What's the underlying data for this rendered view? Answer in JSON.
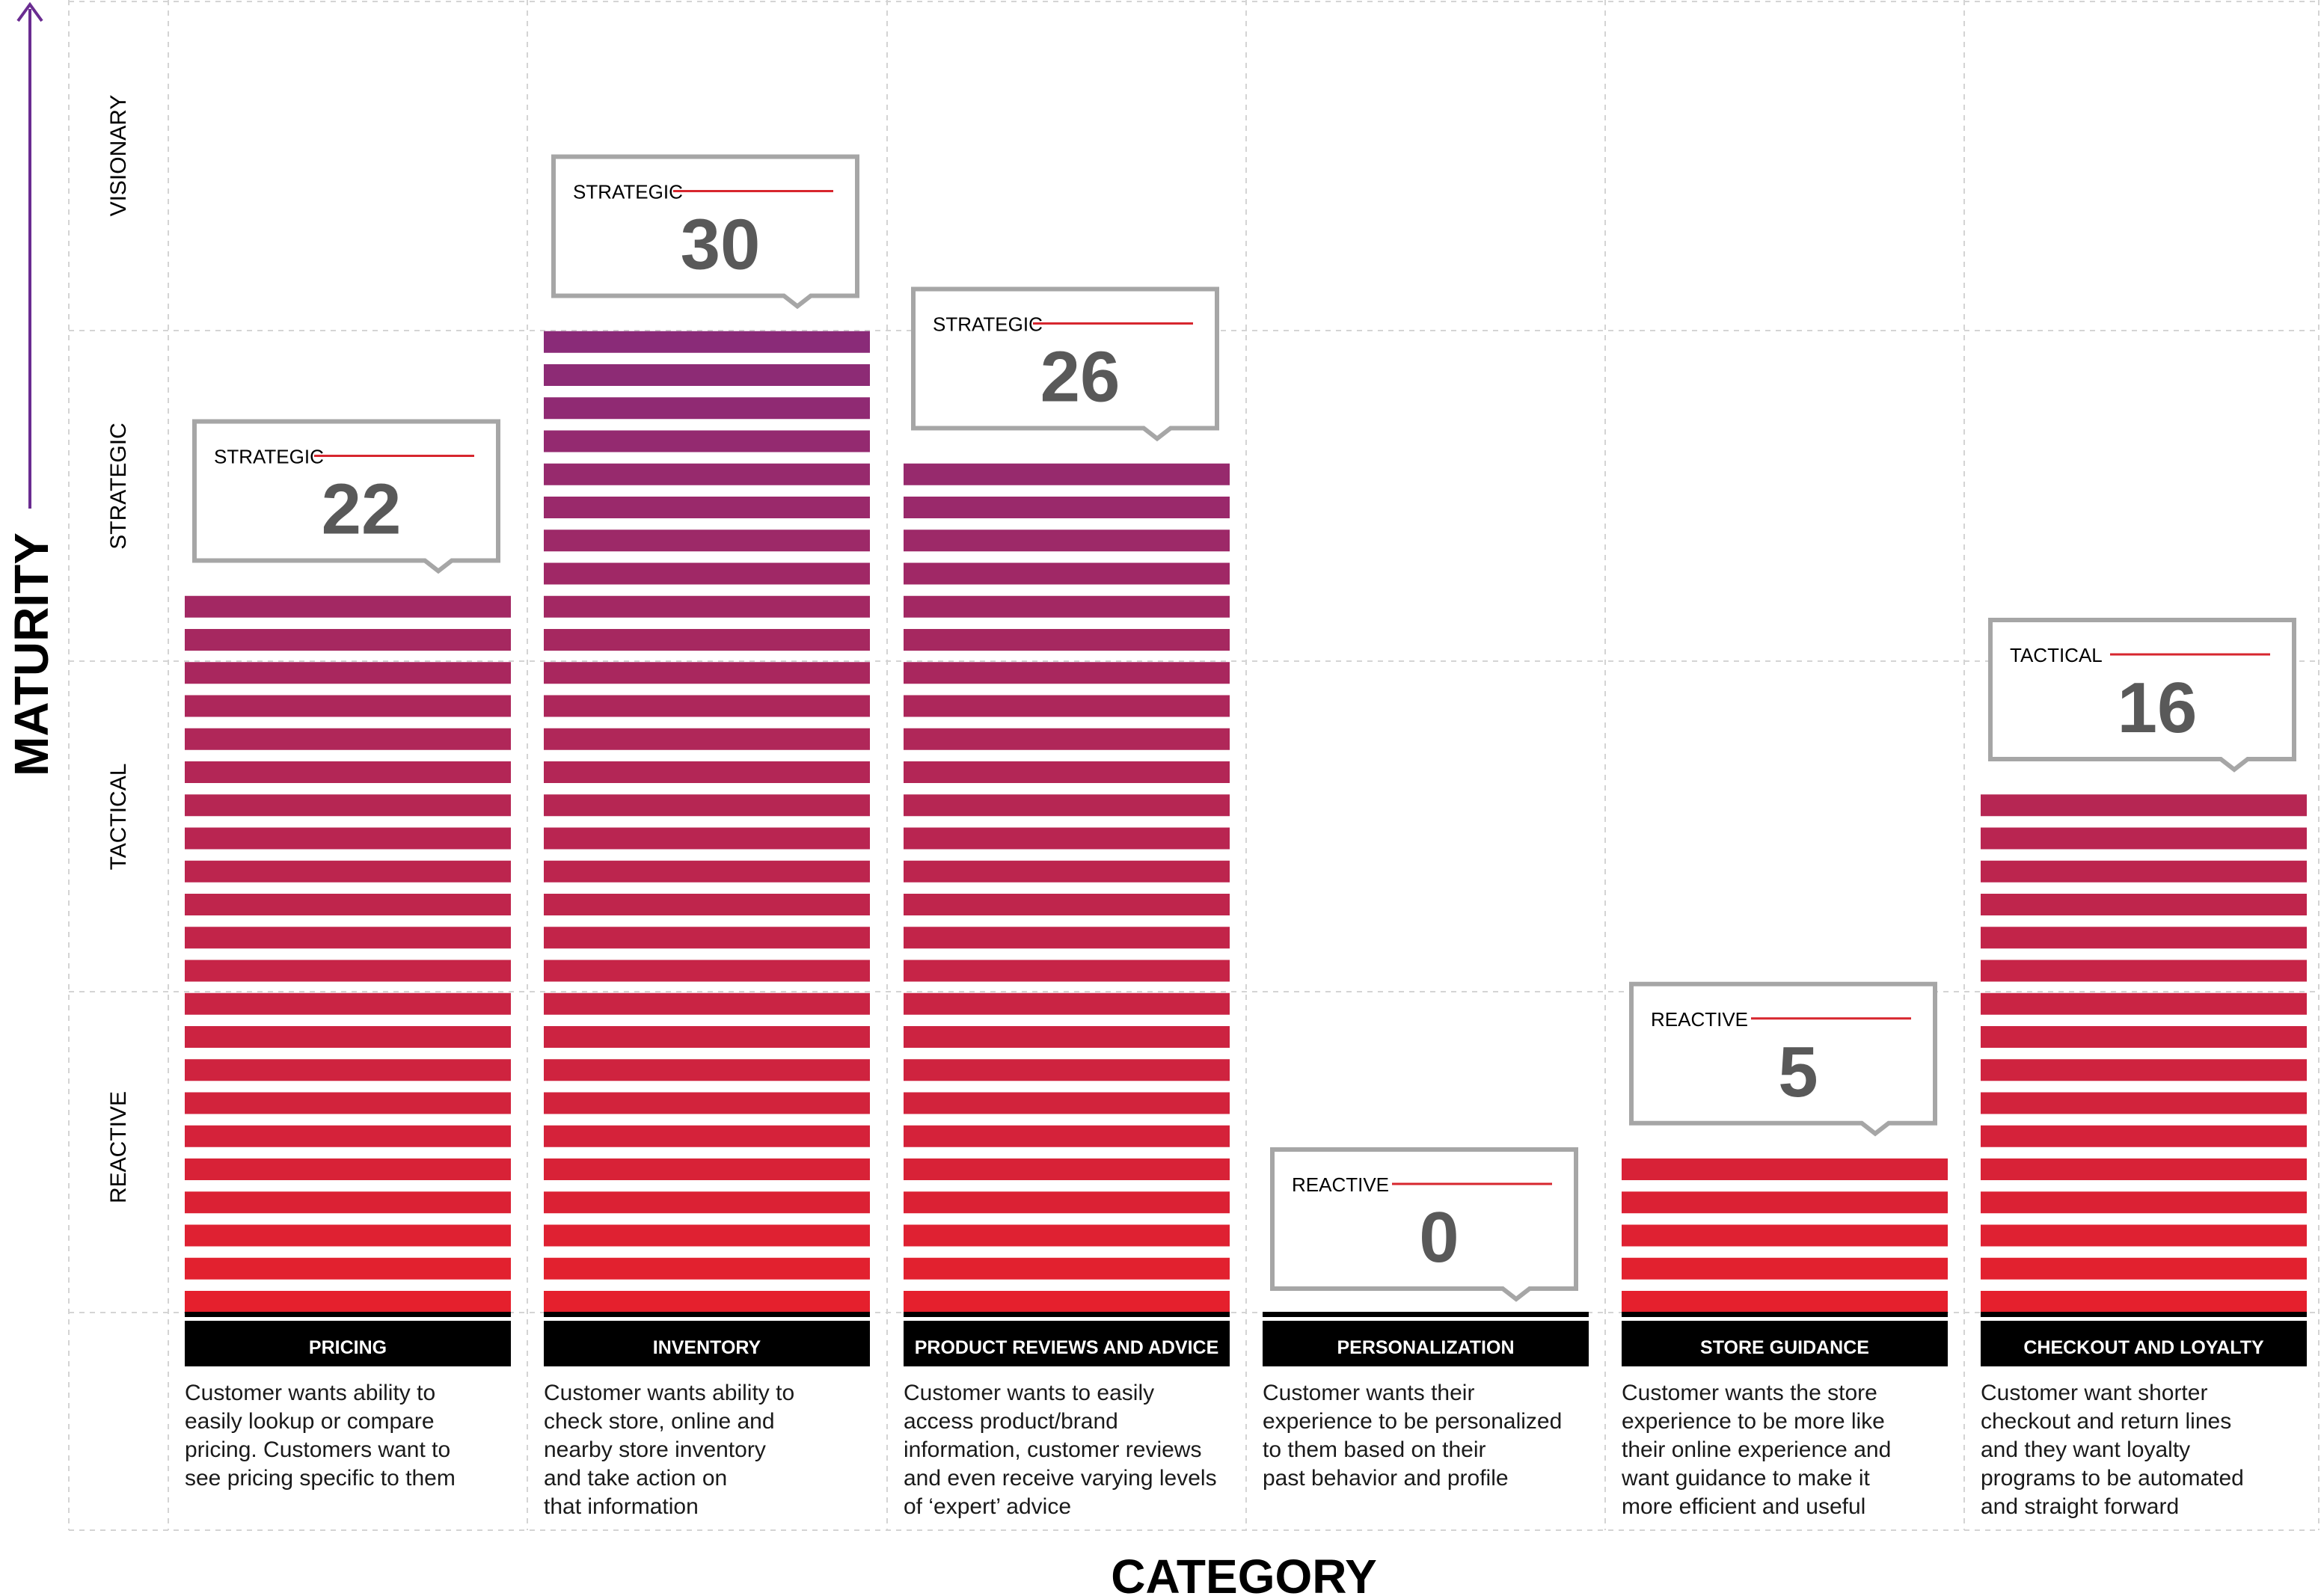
{
  "chart_data": {
    "type": "bar",
    "xlabel": "CATEGORY",
    "ylabel": "MATURITY",
    "y_levels": [
      "REACTIVE",
      "TACTICAL",
      "STRATEGIC",
      "VISIONARY"
    ],
    "ylim": [
      0,
      40
    ],
    "grid": true,
    "categories": [
      "PRICING",
      "INVENTORY",
      "PRODUCT REVIEWS AND ADVICE",
      "PERSONALIZATION",
      "STORE GUIDANCE",
      "CHECKOUT AND LOYALTY"
    ],
    "values": [
      22,
      30,
      26,
      0,
      5,
      16
    ],
    "maturity_labels": [
      "STRATEGIC",
      "STRATEGIC",
      "STRATEGIC",
      "REACTIVE",
      "REACTIVE",
      "TACTICAL"
    ],
    "descriptions": [
      [
        "Customer wants ability to",
        "easily lookup or compare",
        "pricing. Customers want to",
        "see pricing specific to them"
      ],
      [
        "Customer wants ability to",
        "check store, online and",
        "nearby store inventory",
        "and take action on",
        "that information"
      ],
      [
        "Customer wants to easily",
        "access product/brand",
        "information, customer reviews",
        "and even receive varying levels",
        "of ‘expert’ advice"
      ],
      [
        "Customer wants their",
        "experience to be personalized",
        "to them based on their",
        "past behavior and profile"
      ],
      [
        "Customer wants the store",
        "experience to be more like",
        "their online experience and",
        "want guidance to make it",
        "more efficient and useful"
      ],
      [
        "Customer want shorter",
        "checkout and return lines",
        "and they want loyalty",
        "programs to be automated",
        "and straight forward"
      ]
    ],
    "colors": {
      "bar_bottom": "#e8202a",
      "bar_top": "#8a2b78",
      "axis_arrow_bottom": "#c8102e",
      "axis_arrow_top": "#6a2c91",
      "label_bar": "#000000",
      "callout_border": "#a6a6a6",
      "callout_line": "#d7262e",
      "callout_number": "#595959",
      "grid": "#d4d4d4"
    }
  }
}
